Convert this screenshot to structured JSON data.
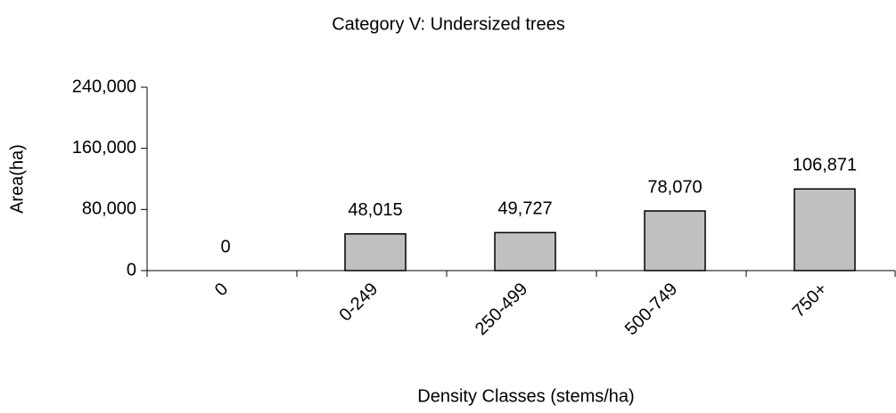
{
  "chart_data": {
    "type": "bar",
    "title": "Category V: Undersized trees",
    "x_label": "Density Classes (stems/ha)",
    "y_label": "Area(ha)",
    "categories": [
      "0",
      "0-249",
      "250-499",
      "500-749",
      "750+"
    ],
    "values": [
      0,
      48015,
      49727,
      78070,
      106871
    ],
    "value_labels": [
      "0",
      "48,015",
      "49,727",
      "78,070",
      "106,871"
    ],
    "color": "#c0c0c0",
    "ylim": [
      0,
      240000
    ],
    "yticks": [
      0,
      {
        "value": 80000,
        "label": "80,000"
      },
      {
        "value": 160000,
        "label": "160,000"
      },
      {
        "value": 240000,
        "label": "240,000"
      }
    ],
    "grid": false
  }
}
